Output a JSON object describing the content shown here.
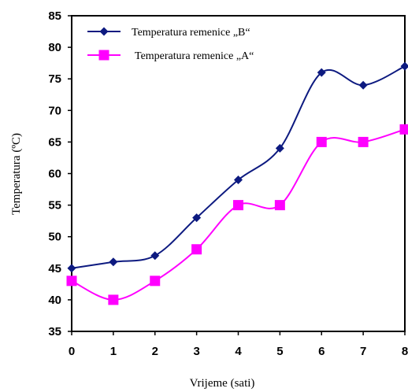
{
  "chart_data": {
    "type": "line",
    "title": "",
    "xlabel": "Vrijeme (sati)",
    "ylabel": "Temperatura (ºC)",
    "x": [
      0,
      1,
      2,
      3,
      4,
      5,
      6,
      7,
      8
    ],
    "xlim": [
      0,
      8
    ],
    "ylim": [
      35,
      85
    ],
    "yticks": [
      35,
      40,
      45,
      50,
      55,
      60,
      65,
      70,
      75,
      80,
      85
    ],
    "grid": false,
    "legend_position": "top-left",
    "series": [
      {
        "name": "Temperatura remenice „B“",
        "values": [
          45,
          46,
          47,
          53,
          59,
          64,
          76,
          74,
          77
        ],
        "color": "#0d1a80",
        "marker": "diamond"
      },
      {
        "name": "Temperatura remenice „A“",
        "values": [
          43,
          40,
          43,
          48,
          55,
          55,
          65,
          65,
          67
        ],
        "color": "#ff00ff",
        "marker": "square"
      }
    ]
  }
}
